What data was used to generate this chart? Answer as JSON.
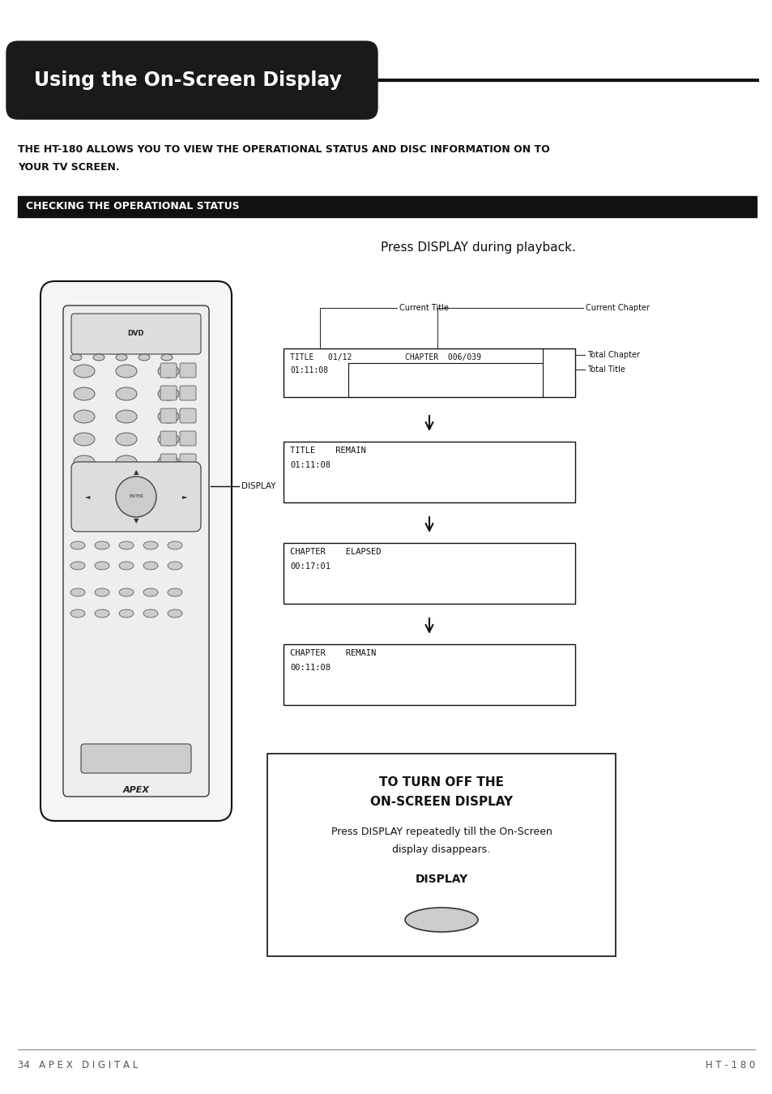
{
  "page_bg": "#ffffff",
  "title_text": "Using the On-Screen Display",
  "title_bg": "#1a1a1a",
  "title_fg": "#ffffff",
  "section_header": "CHECKING THE OPERATIONAL STATUS",
  "section_header_bg": "#111111",
  "section_header_fg": "#ffffff",
  "intro_line1": "THE HT-180 ALLOWS YOU TO VIEW THE OPERATIONAL STATUS AND DISC INFORMATION ON TO",
  "intro_line2": "YOUR TV SCREEN.",
  "press_display_text": "Press DISPLAY during playback.",
  "box1_line1": "TITLE   01/12",
  "box1_line2": "01:11:08",
  "box1_line3": "CHAPTER  006/039",
  "box2_line1": "TITLE    REMAIN",
  "box2_line2": "01:11:08",
  "box3_line1": "CHAPTER    ELAPSED",
  "box3_line2": "00:17:01",
  "box4_line1": "CHAPTER    REMAIN",
  "box4_line2": "00:11:08",
  "ann_current_title": "Current Title",
  "ann_current_chapter": "Current Chapter",
  "ann_total_chapter": "Total Chapter",
  "ann_total_title": "Total Title",
  "display_label": "DISPLAY",
  "bottom_title1": "TO TURN OFF THE",
  "bottom_title2": "ON-SCREEN DISPLAY",
  "bottom_body1": "Press DISPLAY repeatedly till the On-Screen",
  "bottom_body2": "display disappears.",
  "bottom_button": "DISPLAY",
  "footer_left": "34   A P E X   D I G I T A L",
  "footer_right": "H T - 1 8 0"
}
